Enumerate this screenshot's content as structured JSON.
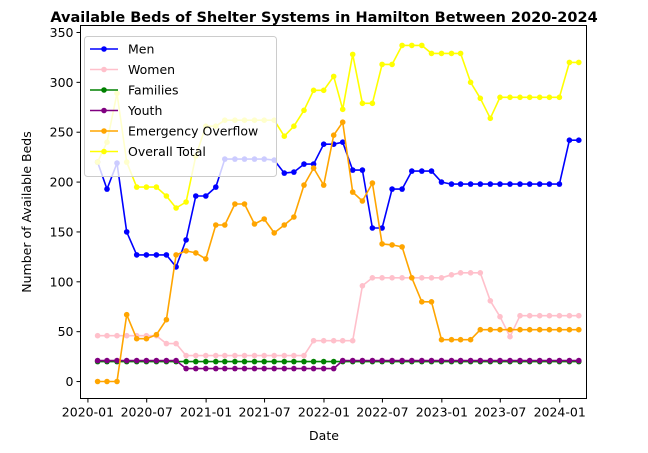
{
  "chart_data": {
    "type": "line",
    "title": "Available Beds of Shelter Systems in Hamilton Between 2020-2024",
    "xlabel": "Date",
    "ylabel": "Number of Available Beds",
    "xlim": [
      "2019-12-09",
      "2024-03-24"
    ],
    "ylim": [
      -17,
      357
    ],
    "xticks": [
      {
        "date": "2020-01-01",
        "label": "2020-01"
      },
      {
        "date": "2020-07-01",
        "label": "2020-07"
      },
      {
        "date": "2021-01-01",
        "label": "2021-01"
      },
      {
        "date": "2021-07-01",
        "label": "2021-07"
      },
      {
        "date": "2022-01-01",
        "label": "2022-01"
      },
      {
        "date": "2022-07-01",
        "label": "2022-07"
      },
      {
        "date": "2023-01-01",
        "label": "2023-01"
      },
      {
        "date": "2023-07-01",
        "label": "2023-07"
      },
      {
        "date": "2024-01-01",
        "label": "2024-01"
      }
    ],
    "yticks": [
      0,
      50,
      100,
      150,
      200,
      250,
      300,
      350
    ],
    "grid": false,
    "legend_position": "top-left",
    "x": [
      "2020-01-31",
      "2020-02-29",
      "2020-03-31",
      "2020-04-30",
      "2020-05-31",
      "2020-06-30",
      "2020-07-31",
      "2020-08-31",
      "2020-09-30",
      "2020-10-31",
      "2020-11-30",
      "2020-12-31",
      "2021-01-31",
      "2021-02-28",
      "2021-03-31",
      "2021-04-30",
      "2021-05-31",
      "2021-06-30",
      "2021-07-31",
      "2021-08-31",
      "2021-09-30",
      "2021-10-31",
      "2021-11-30",
      "2021-12-31",
      "2022-01-31",
      "2022-02-28",
      "2022-03-31",
      "2022-04-30",
      "2022-05-31",
      "2022-06-30",
      "2022-07-31",
      "2022-08-31",
      "2022-09-30",
      "2022-10-31",
      "2022-11-30",
      "2022-12-31",
      "2023-01-31",
      "2023-02-28",
      "2023-03-31",
      "2023-04-30",
      "2023-05-31",
      "2023-06-30",
      "2023-07-31",
      "2023-08-31",
      "2023-09-30",
      "2023-10-31",
      "2023-11-30",
      "2023-12-31",
      "2024-01-31",
      "2024-02-29"
    ],
    "series": [
      {
        "name": "Men",
        "color": "#0000ff",
        "values": [
          220,
          193,
          219,
          150,
          127,
          127,
          127,
          127,
          115,
          142,
          186,
          186,
          195,
          223,
          223,
          223,
          223,
          223,
          222,
          209,
          210,
          218,
          218,
          238,
          238,
          240,
          212,
          212,
          154,
          154,
          193,
          193,
          211,
          211,
          211,
          200,
          198,
          198,
          198,
          198,
          198,
          198,
          198,
          198,
          198,
          198,
          198,
          198,
          242,
          242
        ]
      },
      {
        "name": "Women",
        "color": "#ffc0cb",
        "values": [
          46,
          46,
          46,
          46,
          46,
          46,
          46,
          38,
          38,
          26,
          26,
          26,
          26,
          26,
          26,
          26,
          26,
          26,
          26,
          26,
          26,
          26,
          41,
          41,
          41,
          41,
          41,
          96,
          104,
          104,
          104,
          104,
          104,
          104,
          104,
          104,
          107,
          109,
          109,
          109,
          81,
          65,
          45,
          66,
          66,
          66,
          66,
          66,
          66,
          66
        ]
      },
      {
        "name": "Families",
        "color": "#008000",
        "values": [
          20,
          20,
          20,
          20,
          20,
          20,
          20,
          20,
          20,
          20,
          20,
          20,
          20,
          20,
          20,
          20,
          20,
          20,
          20,
          20,
          20,
          20,
          20,
          20,
          20,
          20,
          20,
          20,
          20,
          20,
          20,
          20,
          20,
          20,
          20,
          20,
          20,
          20,
          20,
          20,
          20,
          20,
          20,
          20,
          20,
          20,
          20,
          20,
          20,
          20
        ]
      },
      {
        "name": "Youth",
        "color": "#800080",
        "values": [
          21,
          21,
          21,
          21,
          21,
          21,
          21,
          21,
          21,
          13,
          13,
          13,
          13,
          13,
          13,
          13,
          13,
          13,
          13,
          13,
          13,
          13,
          13,
          13,
          13,
          21,
          21,
          21,
          21,
          21,
          21,
          21,
          21,
          21,
          21,
          21,
          21,
          21,
          21,
          21,
          21,
          21,
          21,
          21,
          21,
          21,
          21,
          21,
          21,
          21
        ]
      },
      {
        "name": "Emergency Overflow",
        "color": "#ffa500",
        "values": [
          0,
          0,
          0,
          67,
          43,
          43,
          47,
          62,
          127,
          131,
          129,
          123,
          157,
          157,
          178,
          178,
          158,
          163,
          149,
          157,
          165,
          197,
          214,
          197,
          247,
          260,
          190,
          181,
          199,
          138,
          137,
          135,
          104,
          80,
          80,
          42,
          42,
          42,
          42,
          52,
          52,
          52,
          52,
          52,
          52,
          52,
          52,
          52,
          52,
          52
        ]
      },
      {
        "name": "Overall Total",
        "color": "#ffff00",
        "values": [
          220,
          240,
          289,
          220,
          195,
          195,
          195,
          186,
          174,
          180,
          226,
          256,
          256,
          262,
          262,
          262,
          262,
          262,
          262,
          246,
          256,
          272,
          292,
          292,
          306,
          273,
          328,
          279,
          279,
          318,
          318,
          337,
          337,
          337,
          329,
          329,
          329,
          329,
          300,
          284,
          264,
          285,
          285,
          285,
          285,
          285,
          285,
          285,
          320,
          320
        ]
      }
    ]
  }
}
